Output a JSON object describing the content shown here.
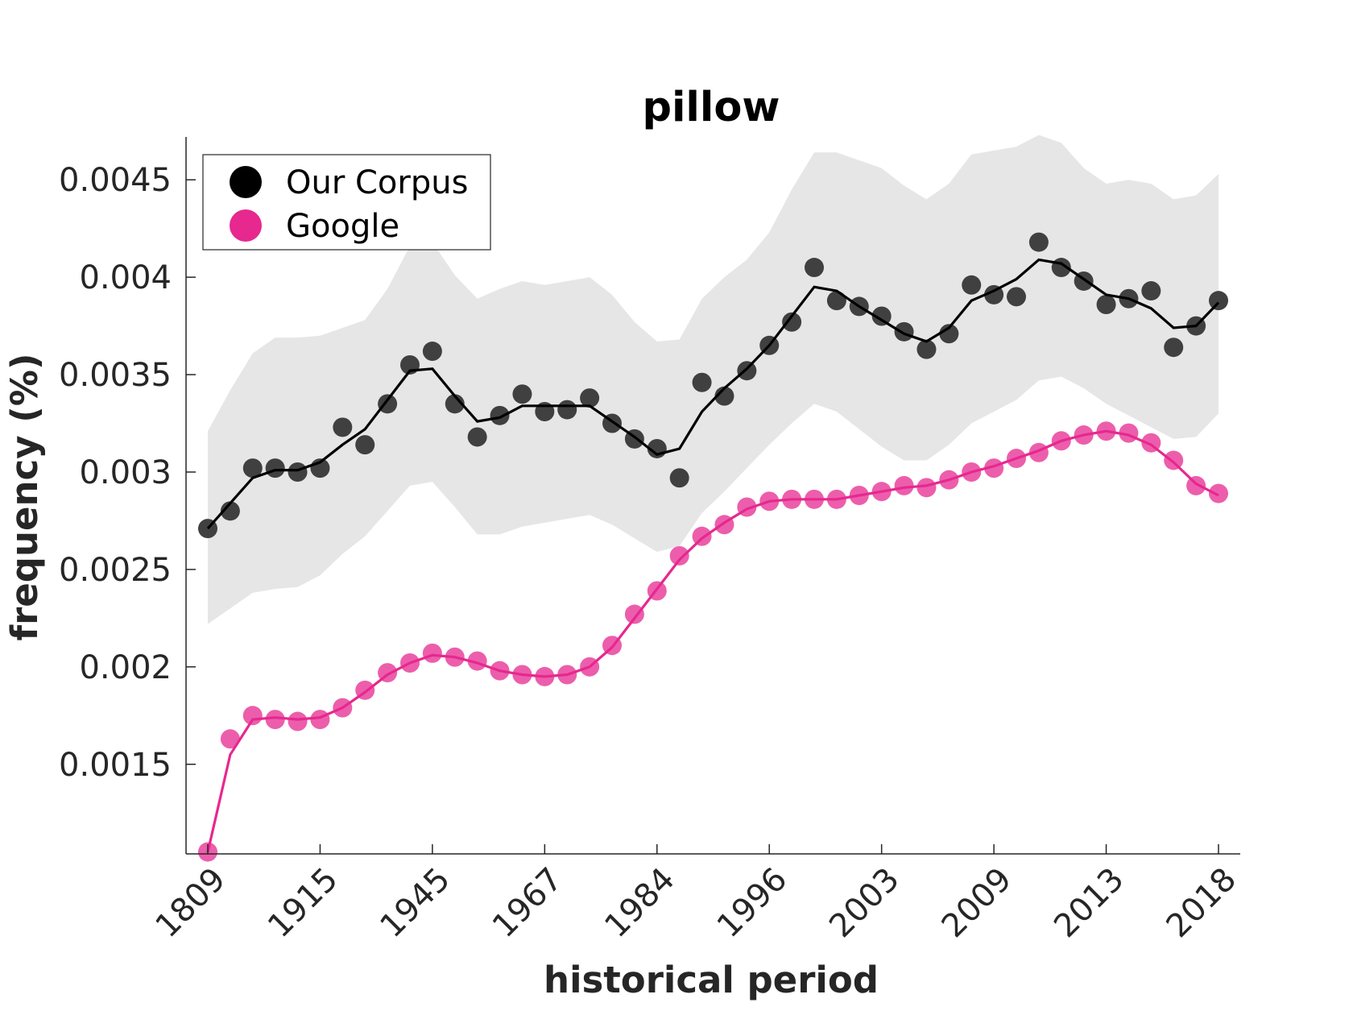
{
  "chart_data": {
    "type": "line",
    "title": "pillow",
    "xlabel": "historical period",
    "ylabel": "frequency (%)",
    "x_tick_labels": [
      "1809",
      "1915",
      "1945",
      "1967",
      "1984",
      "1996",
      "2003",
      "2009",
      "2013",
      "2018"
    ],
    "y_ticks": [
      0.0015,
      0.002,
      0.0025,
      0.003,
      0.0035,
      0.004,
      0.0045
    ],
    "y_tick_labels": [
      "0.0015",
      "0.002",
      "0.0025",
      "0.003",
      "0.0035",
      "0.004",
      "0.0045"
    ],
    "ylim": [
      0.00104,
      0.00472
    ],
    "n_periods": 46,
    "legend_position": "top-left",
    "grid": false,
    "colors": {
      "corpus_points": "#404040",
      "corpus_line": "#000000",
      "google": "#e6288f",
      "band": "#e6e6e6"
    },
    "series": [
      {
        "name": "Our Corpus",
        "values": [
          0.00271,
          0.0028,
          0.00302,
          0.00302,
          0.003,
          0.00302,
          0.00323,
          0.00314,
          0.00335,
          0.00355,
          0.00362,
          0.00335,
          0.00318,
          0.00329,
          0.0034,
          0.00331,
          0.00332,
          0.00338,
          0.00325,
          0.00317,
          0.00312,
          0.00297,
          0.00346,
          0.00339,
          0.00352,
          0.00365,
          0.00377,
          0.00405,
          0.00388,
          0.00385,
          0.0038,
          0.00372,
          0.00363,
          0.00371,
          0.00396,
          0.00391,
          0.0039,
          0.00418,
          0.00405,
          0.00398,
          0.00386,
          0.00389,
          0.00393,
          0.00364,
          0.00375,
          0.00388
        ],
        "smoothed": [
          0.00271,
          0.00284,
          0.00297,
          0.00301,
          0.00301,
          0.00305,
          0.00314,
          0.00322,
          0.00337,
          0.00352,
          0.00353,
          0.00339,
          0.00326,
          0.00328,
          0.00334,
          0.00334,
          0.00334,
          0.00334,
          0.00326,
          0.00318,
          0.00309,
          0.00312,
          0.00331,
          0.00343,
          0.00353,
          0.00365,
          0.0038,
          0.00395,
          0.00393,
          0.00385,
          0.00378,
          0.00371,
          0.00367,
          0.00374,
          0.00388,
          0.00393,
          0.00399,
          0.00409,
          0.00407,
          0.00399,
          0.00391,
          0.00389,
          0.00384,
          0.00374,
          0.00375,
          0.00387
        ],
        "band_upper": [
          0.00321,
          0.00342,
          0.00361,
          0.00369,
          0.00369,
          0.0037,
          0.00374,
          0.00378,
          0.00394,
          0.00416,
          0.00418,
          0.00401,
          0.00389,
          0.00394,
          0.00398,
          0.00396,
          0.00398,
          0.004,
          0.00391,
          0.00377,
          0.00367,
          0.00368,
          0.00389,
          0.004,
          0.00409,
          0.00423,
          0.00445,
          0.00464,
          0.00464,
          0.0046,
          0.00456,
          0.00447,
          0.0044,
          0.00448,
          0.00463,
          0.00465,
          0.00467,
          0.00473,
          0.00469,
          0.00456,
          0.00448,
          0.0045,
          0.00448,
          0.0044,
          0.00442,
          0.00453
        ],
        "band_lower": [
          0.00222,
          0.0023,
          0.00238,
          0.0024,
          0.00241,
          0.00247,
          0.00258,
          0.00267,
          0.0028,
          0.00293,
          0.00295,
          0.00282,
          0.00268,
          0.00268,
          0.00272,
          0.00274,
          0.00276,
          0.00278,
          0.00273,
          0.00266,
          0.00259,
          0.00262,
          0.00279,
          0.0029,
          0.00302,
          0.00314,
          0.00325,
          0.00335,
          0.00331,
          0.00322,
          0.00313,
          0.00306,
          0.00306,
          0.00314,
          0.00325,
          0.00331,
          0.00337,
          0.00347,
          0.00349,
          0.00343,
          0.00335,
          0.00329,
          0.00323,
          0.00317,
          0.00318,
          0.0033
        ]
      },
      {
        "name": "Google",
        "values": [
          0.00105,
          0.00163,
          0.00175,
          0.00173,
          0.00172,
          0.00173,
          0.00179,
          0.00188,
          0.00197,
          0.00202,
          0.00207,
          0.00205,
          0.00203,
          0.00198,
          0.00196,
          0.00195,
          0.00196,
          0.002,
          0.00211,
          0.00227,
          0.00239,
          0.00257,
          0.00267,
          0.00273,
          0.00282,
          0.00285,
          0.00286,
          0.00286,
          0.00286,
          0.00288,
          0.0029,
          0.00293,
          0.00292,
          0.00296,
          0.003,
          0.00302,
          0.00307,
          0.0031,
          0.00316,
          0.00319,
          0.00321,
          0.0032,
          0.00315,
          0.00306,
          0.00293,
          0.00289
        ],
        "smoothed": [
          0.00105,
          0.00155,
          0.00173,
          0.00174,
          0.00173,
          0.00174,
          0.00179,
          0.00187,
          0.00196,
          0.00202,
          0.00206,
          0.00205,
          0.00202,
          0.00198,
          0.00196,
          0.00195,
          0.00196,
          0.002,
          0.0021,
          0.00225,
          0.0024,
          0.00255,
          0.00266,
          0.00274,
          0.00281,
          0.00285,
          0.00286,
          0.00286,
          0.00286,
          0.00288,
          0.0029,
          0.00292,
          0.00293,
          0.00296,
          0.003,
          0.00303,
          0.00307,
          0.00311,
          0.00316,
          0.00319,
          0.00321,
          0.00319,
          0.00314,
          0.00305,
          0.00294,
          0.00288
        ]
      }
    ],
    "legend": [
      {
        "label": "Our Corpus"
      },
      {
        "label": "Google"
      }
    ]
  }
}
